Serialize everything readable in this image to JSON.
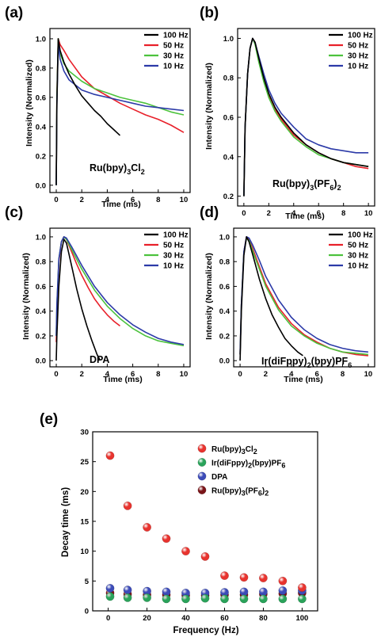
{
  "colors": {
    "s100": "#000000",
    "s50": "#e8202a",
    "s30": "#4cc23d",
    "s10": "#2c3aa8",
    "ru_cl2": "#e8332e",
    "ir": "#2aa35a",
    "dpa": "#3c4bb8",
    "ru_pf6": "#7a1418"
  },
  "chart_data": [
    {
      "panel": "(a)",
      "type": "line",
      "annotation": {
        "base": "Ru(bpy)",
        "sub1": "3",
        "mid": "Cl",
        "sub2": "2"
      },
      "xlabel": "Time (ms)",
      "ylabel": "Intensity (Normalized)",
      "xlim": [
        -0.5,
        10.5
      ],
      "ylim": [
        -0.05,
        1.07
      ],
      "xticks": [
        "0",
        "2",
        "4",
        "6",
        "8",
        "10"
      ],
      "yticks": [
        "0.0",
        "0.2",
        "0.4",
        "0.6",
        "0.8",
        "1.0"
      ],
      "legend_position": "top-right",
      "series": [
        {
          "name": "100 Hz",
          "color": "#000000",
          "x": [
            0,
            0.05,
            0.15,
            0.3,
            0.6,
            1,
            1.5,
            2,
            2.5,
            3,
            3.5,
            4,
            4.5,
            5
          ],
          "y": [
            0,
            0.55,
            1.0,
            0.92,
            0.84,
            0.76,
            0.68,
            0.61,
            0.56,
            0.51,
            0.47,
            0.42,
            0.38,
            0.34
          ]
        },
        {
          "name": "50 Hz",
          "color": "#e8202a",
          "x": [
            0,
            0.05,
            0.15,
            0.3,
            0.6,
            1,
            2,
            3,
            4,
            5,
            6,
            7,
            8,
            9,
            10
          ],
          "y": [
            0,
            0.6,
            1.0,
            0.96,
            0.92,
            0.86,
            0.74,
            0.66,
            0.61,
            0.56,
            0.52,
            0.48,
            0.45,
            0.41,
            0.36
          ]
        },
        {
          "name": "30 Hz",
          "color": "#4cc23d",
          "x": [
            0,
            0.05,
            0.15,
            0.3,
            0.6,
            1,
            2,
            3,
            4,
            5,
            6,
            7,
            8,
            9,
            10
          ],
          "y": [
            0,
            0.6,
            1.0,
            0.9,
            0.83,
            0.78,
            0.71,
            0.66,
            0.63,
            0.6,
            0.58,
            0.56,
            0.53,
            0.5,
            0.48
          ]
        },
        {
          "name": "10 Hz",
          "color": "#2c3aa8",
          "x": [
            0,
            0.05,
            0.15,
            0.3,
            0.6,
            1,
            2,
            3,
            4,
            5,
            6,
            7,
            8,
            9,
            10
          ],
          "y": [
            0,
            0.55,
            0.96,
            0.86,
            0.78,
            0.72,
            0.65,
            0.62,
            0.6,
            0.58,
            0.56,
            0.54,
            0.53,
            0.52,
            0.51
          ]
        }
      ]
    },
    {
      "panel": "(b)",
      "type": "line",
      "annotation": {
        "base": "Ru(bpy)",
        "sub1": "3",
        "mid": "(PF",
        "sub2": "6",
        "tail": ")",
        "sub3": "2"
      },
      "xlabel": "Time (ms)",
      "ylabel": "Intensity (Normalized)",
      "xlim": [
        -0.5,
        10.5
      ],
      "ylim": [
        0.15,
        1.05
      ],
      "xticks": [
        "0",
        "2",
        "4",
        "6",
        "8",
        "10"
      ],
      "yticks": [
        "0.2",
        "0.4",
        "0.6",
        "0.8",
        "1.0"
      ],
      "legend_position": "top-right",
      "series": [
        {
          "name": "100 Hz",
          "color": "#000000",
          "x": [
            0,
            0.1,
            0.3,
            0.5,
            0.7,
            0.9,
            1.2,
            1.6,
            2,
            2.5,
            3,
            4,
            5,
            6,
            7,
            8,
            9,
            10
          ],
          "y": [
            0.2,
            0.55,
            0.82,
            0.95,
            1.0,
            0.98,
            0.9,
            0.8,
            0.72,
            0.65,
            0.6,
            0.52,
            0.46,
            0.42,
            0.39,
            0.37,
            0.36,
            0.35
          ]
        },
        {
          "name": "50 Hz",
          "color": "#e8202a",
          "x": [
            0,
            0.1,
            0.3,
            0.5,
            0.7,
            0.9,
            1.2,
            1.6,
            2,
            2.5,
            3,
            4,
            5,
            6,
            7,
            8,
            9,
            10
          ],
          "y": [
            0.2,
            0.55,
            0.82,
            0.95,
            1.0,
            0.98,
            0.89,
            0.79,
            0.71,
            0.64,
            0.59,
            0.51,
            0.46,
            0.42,
            0.39,
            0.37,
            0.35,
            0.34
          ]
        },
        {
          "name": "30 Hz",
          "color": "#4cc23d",
          "x": [
            0,
            0.1,
            0.3,
            0.5,
            0.7,
            0.9,
            1.2,
            1.6,
            2,
            2.5,
            3,
            4,
            5,
            6,
            7,
            8,
            9,
            10
          ],
          "y": [
            0.2,
            0.55,
            0.82,
            0.95,
            1.0,
            0.97,
            0.88,
            0.78,
            0.7,
            0.63,
            0.58,
            0.5,
            0.45,
            0.41,
            0.39,
            0.37,
            0.36,
            0.35
          ]
        },
        {
          "name": "10 Hz",
          "color": "#2c3aa8",
          "x": [
            0,
            0.1,
            0.3,
            0.5,
            0.7,
            0.9,
            1.2,
            1.6,
            2,
            2.5,
            3,
            4,
            5,
            6,
            7,
            8,
            9,
            10
          ],
          "y": [
            0.2,
            0.55,
            0.82,
            0.95,
            1.0,
            0.98,
            0.91,
            0.82,
            0.74,
            0.67,
            0.62,
            0.55,
            0.49,
            0.46,
            0.44,
            0.43,
            0.42,
            0.42
          ]
        }
      ]
    },
    {
      "panel": "(c)",
      "type": "line",
      "annotation": {
        "base": "DPA"
      },
      "xlabel": "Time (ms)",
      "ylabel": "Intensity (Normalized)",
      "xlim": [
        -0.5,
        10.5
      ],
      "ylim": [
        -0.05,
        1.07
      ],
      "xticks": [
        "0",
        "2",
        "4",
        "6",
        "8",
        "10"
      ],
      "yticks": [
        "0.0",
        "0.2",
        "0.4",
        "0.6",
        "0.8",
        "1.0"
      ],
      "legend_position": "top-right",
      "series": [
        {
          "name": "100 Hz",
          "color": "#000000",
          "x": [
            0,
            0.05,
            0.2,
            0.4,
            0.6,
            0.8,
            1,
            1.3,
            1.6,
            2,
            2.4,
            2.8,
            3.2,
            3.4
          ],
          "y": [
            0,
            0.2,
            0.6,
            0.88,
            0.98,
            0.95,
            0.86,
            0.72,
            0.58,
            0.42,
            0.28,
            0.16,
            0.05,
            0.01
          ]
        },
        {
          "name": "50 Hz",
          "color": "#e8202a",
          "x": [
            0,
            0.05,
            0.2,
            0.4,
            0.6,
            0.8,
            1.2,
            1.6,
            2,
            2.5,
            3,
            3.5,
            4,
            4.5,
            5
          ],
          "y": [
            0.15,
            0.4,
            0.8,
            0.96,
            1.0,
            0.98,
            0.88,
            0.78,
            0.69,
            0.59,
            0.5,
            0.43,
            0.37,
            0.32,
            0.28
          ]
        },
        {
          "name": "30 Hz",
          "color": "#4cc23d",
          "x": [
            0,
            0.05,
            0.2,
            0.4,
            0.6,
            0.8,
            1.2,
            2,
            3,
            4,
            5,
            6,
            7,
            8,
            9,
            10
          ],
          "y": [
            0.2,
            0.45,
            0.82,
            0.96,
            1.0,
            0.98,
            0.9,
            0.74,
            0.57,
            0.44,
            0.34,
            0.26,
            0.2,
            0.16,
            0.14,
            0.12
          ]
        },
        {
          "name": "10 Hz",
          "color": "#2c3aa8",
          "x": [
            0,
            0.05,
            0.2,
            0.4,
            0.6,
            0.8,
            1.2,
            2,
            3,
            4,
            5,
            6,
            7,
            8,
            9,
            10
          ],
          "y": [
            0.2,
            0.45,
            0.82,
            0.96,
            1.0,
            0.99,
            0.92,
            0.77,
            0.6,
            0.47,
            0.37,
            0.29,
            0.23,
            0.18,
            0.15,
            0.13
          ]
        }
      ]
    },
    {
      "panel": "(d)",
      "type": "line",
      "annotation": {
        "base": "Ir(diFppy)",
        "sub1": "2",
        "mid": "(bpy)PF",
        "sub2": "6"
      },
      "xlabel": "Time (ms)",
      "ylabel": "Intensity (Normalized)",
      "xlim": [
        -0.5,
        10.5
      ],
      "ylim": [
        -0.05,
        1.07
      ],
      "xticks": [
        "0",
        "2",
        "4",
        "6",
        "8",
        "10"
      ],
      "yticks": [
        "0.0",
        "0.2",
        "0.4",
        "0.6",
        "0.8",
        "1.0"
      ],
      "legend_position": "top-right",
      "series": [
        {
          "name": "100 Hz",
          "color": "#000000",
          "x": [
            0,
            0.1,
            0.3,
            0.5,
            0.7,
            1,
            1.5,
            2,
            2.5,
            3,
            3.5,
            4,
            4.5,
            4.9
          ],
          "y": [
            0,
            0.4,
            0.85,
            1.0,
            0.96,
            0.85,
            0.66,
            0.5,
            0.37,
            0.27,
            0.18,
            0.12,
            0.07,
            0.04
          ]
        },
        {
          "name": "50 Hz",
          "color": "#e8202a",
          "x": [
            0,
            0.1,
            0.3,
            0.5,
            0.7,
            1,
            1.5,
            2,
            3,
            4,
            5,
            6,
            7,
            8,
            9,
            10
          ],
          "y": [
            0.05,
            0.45,
            0.88,
            1.0,
            0.98,
            0.9,
            0.76,
            0.62,
            0.43,
            0.3,
            0.21,
            0.15,
            0.1,
            0.07,
            0.05,
            0.04
          ]
        },
        {
          "name": "30 Hz",
          "color": "#4cc23d",
          "x": [
            0,
            0.1,
            0.3,
            0.5,
            0.7,
            1,
            1.5,
            2,
            3,
            4,
            5,
            6,
            7,
            8,
            9,
            10
          ],
          "y": [
            0.05,
            0.45,
            0.88,
            0.99,
            0.97,
            0.88,
            0.74,
            0.6,
            0.41,
            0.28,
            0.2,
            0.14,
            0.1,
            0.07,
            0.06,
            0.05
          ]
        },
        {
          "name": "10 Hz",
          "color": "#2c3aa8",
          "x": [
            0,
            0.1,
            0.3,
            0.5,
            0.7,
            1,
            1.5,
            2,
            3,
            4,
            5,
            6,
            7,
            8,
            9,
            10
          ],
          "y": [
            0.05,
            0.45,
            0.88,
            1.0,
            0.99,
            0.93,
            0.81,
            0.68,
            0.49,
            0.35,
            0.25,
            0.18,
            0.13,
            0.1,
            0.08,
            0.07
          ]
        }
      ]
    },
    {
      "panel": "(e)",
      "type": "scatter",
      "xlabel": "Frequency (Hz)",
      "ylabel": "Decay time (ms)",
      "xlim": [
        -8,
        108
      ],
      "ylim": [
        0,
        30
      ],
      "xticks": [
        "0",
        "20",
        "40",
        "60",
        "80",
        "100"
      ],
      "yticks": [
        "0",
        "5",
        "10",
        "15",
        "20",
        "25",
        "30"
      ],
      "legend_position": "top-right",
      "x": [
        1,
        10,
        20,
        30,
        40,
        50,
        60,
        70,
        80,
        90,
        100
      ],
      "series": [
        {
          "name": "Ru(bpy)3Cl2",
          "color": "#e8332e",
          "values": [
            26,
            17.6,
            14,
            12.1,
            10,
            9.1,
            5.9,
            5.6,
            5.5,
            5,
            3.9
          ]
        },
        {
          "name": "Ir(diFppy)2(bpy)PF6",
          "color": "#2aa35a",
          "values": [
            2.4,
            2.2,
            2.2,
            2.0,
            2.0,
            2.1,
            2.0,
            2.0,
            2.0,
            2.0,
            2.0
          ]
        },
        {
          "name": "DPA",
          "color": "#3c4bb8",
          "values": [
            3.8,
            3.5,
            3.3,
            3.2,
            3.0,
            3.0,
            3.1,
            3.2,
            3.2,
            3.4,
            3.4
          ]
        },
        {
          "name": "Ru(bpy)3(PF6)2",
          "color": "#7a1418",
          "values": [
            3.0,
            2.8,
            2.7,
            2.7,
            2.6,
            2.6,
            2.7,
            2.7,
            2.8,
            2.9,
            3.0
          ]
        }
      ],
      "legend_labels": [
        {
          "base": "Ru(bpy)",
          "sub1": "3",
          "mid": "Cl",
          "sub2": "2"
        },
        {
          "base": "Ir(diFppy)",
          "sub1": "2",
          "mid": "(bpy)PF",
          "sub2": "6"
        },
        {
          "base": "DPA"
        },
        {
          "base": "Ru(bpy)",
          "sub1": "3",
          "mid": "(PF",
          "sub2": "6",
          "tail": ")",
          "sub3": "2"
        }
      ]
    }
  ]
}
